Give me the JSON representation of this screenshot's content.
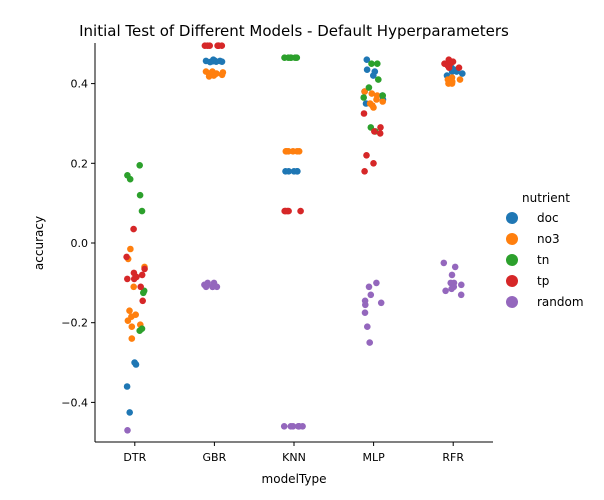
{
  "chart_data": {
    "type": "scatter",
    "title": "Initial Test of Different Models - Default Hyperparameters",
    "xlabel": "modelType",
    "ylabel": "accuracy",
    "categories": [
      "DTR",
      "GBR",
      "KNN",
      "MLP",
      "RFR"
    ],
    "ylim": [
      -0.5,
      0.5
    ],
    "yticks": [
      "0.4",
      "0.2",
      "0.0",
      "−0.2",
      "−0.4"
    ],
    "ytick_values": [
      0.4,
      0.2,
      0.0,
      -0.2,
      -0.4
    ],
    "grid": false,
    "legend": {
      "title": "nutrient",
      "placement": "right",
      "entries": [
        {
          "label": "doc",
          "color": "#1f77b4"
        },
        {
          "label": "no3",
          "color": "#ff7f0e"
        },
        {
          "label": "tn",
          "color": "#2ca02c"
        },
        {
          "label": "tp",
          "color": "#d62728"
        },
        {
          "label": "random",
          "color": "#9467bd"
        }
      ]
    },
    "series": [
      {
        "name": "doc",
        "color": "#1f77b4",
        "points": {
          "DTR": [
            -0.3,
            -0.305,
            -0.36,
            -0.425
          ],
          "GBR": [
            0.46,
            0.458,
            0.457,
            0.455,
            0.455,
            0.456,
            0.454,
            0.457
          ],
          "KNN": [
            0.18,
            0.18,
            0.18,
            0.18,
            0.18
          ],
          "MLP": [
            0.46,
            0.43,
            0.42,
            0.435,
            0.38,
            0.37,
            0.36,
            0.35
          ],
          "RFR": [
            0.43,
            0.425,
            0.42,
            0.44,
            0.435,
            0.43
          ]
        }
      },
      {
        "name": "no3",
        "color": "#ff7f0e",
        "points": {
          "DTR": [
            -0.015,
            -0.04,
            -0.06,
            -0.11,
            -0.17,
            -0.18,
            -0.185,
            -0.195,
            -0.205,
            -0.21,
            -0.24
          ],
          "GBR": [
            0.43,
            0.428,
            0.425,
            0.422,
            0.42,
            0.418,
            0.425,
            0.43
          ],
          "KNN": [
            0.23,
            0.23,
            0.23,
            0.23,
            0.23,
            0.23
          ],
          "MLP": [
            0.38,
            0.375,
            0.37,
            0.36,
            0.355,
            0.35,
            0.345,
            0.34
          ],
          "RFR": [
            0.4,
            0.41,
            0.405,
            0.415,
            0.4,
            0.41
          ]
        }
      },
      {
        "name": "tn",
        "color": "#2ca02c",
        "points": {
          "DTR": [
            0.195,
            0.17,
            0.16,
            0.12,
            0.08,
            -0.12,
            -0.125,
            -0.215,
            -0.22
          ],
          "GBR": [],
          "KNN": [
            0.465,
            0.465,
            0.465,
            0.465,
            0.465,
            0.465
          ],
          "MLP": [
            0.45,
            0.45,
            0.41,
            0.39,
            0.37,
            0.365,
            0.29,
            0.28
          ],
          "RFR": []
        }
      },
      {
        "name": "tp",
        "color": "#d62728",
        "points": {
          "DTR": [
            0.035,
            -0.035,
            -0.065,
            -0.075,
            -0.08,
            -0.085,
            -0.09,
            -0.09,
            -0.11,
            -0.145
          ],
          "GBR": [
            0.495,
            0.495,
            0.495,
            0.495,
            0.495,
            0.495,
            0.495
          ],
          "KNN": [
            0.08,
            0.08,
            0.08,
            0.08,
            0.08
          ],
          "MLP": [
            0.325,
            0.28,
            0.275,
            0.29,
            0.22,
            0.2,
            0.18
          ],
          "RFR": [
            0.46,
            0.455,
            0.45,
            0.45,
            0.445,
            0.44,
            0.44
          ]
        }
      },
      {
        "name": "random",
        "color": "#9467bd",
        "points": {
          "DTR": [
            -0.47
          ],
          "GBR": [
            -0.1,
            -0.105,
            -0.11,
            -0.11,
            -0.11,
            -0.105,
            -0.1,
            -0.11
          ],
          "KNN": [
            -0.46,
            -0.46,
            -0.46,
            -0.46,
            -0.46,
            -0.46,
            -0.46
          ],
          "MLP": [
            -0.1,
            -0.11,
            -0.13,
            -0.145,
            -0.15,
            -0.155,
            -0.175,
            -0.21,
            -0.25
          ],
          "RFR": [
            -0.05,
            -0.06,
            -0.08,
            -0.1,
            -0.1,
            -0.105,
            -0.11,
            -0.115,
            -0.12,
            -0.13
          ]
        }
      }
    ]
  }
}
